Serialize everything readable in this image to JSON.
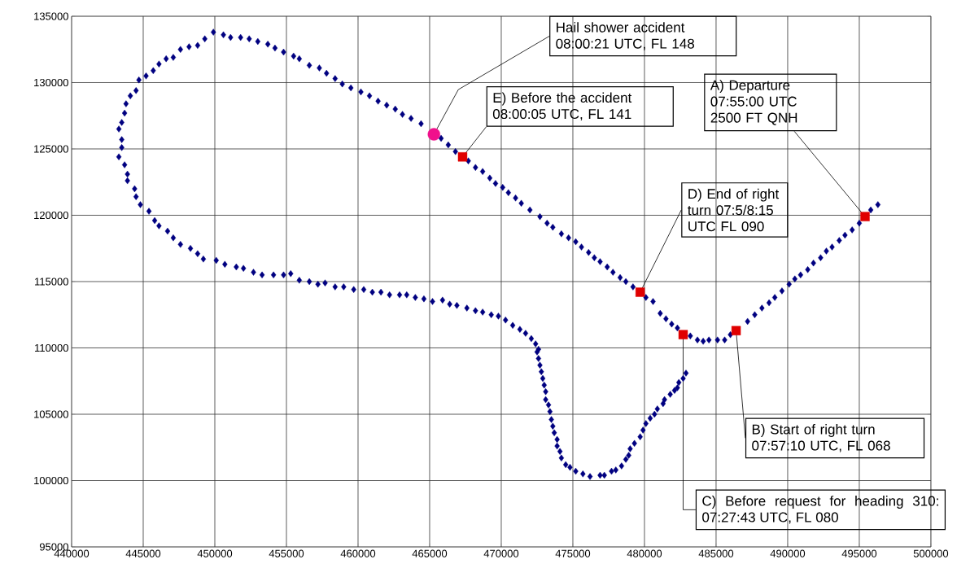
{
  "chart_data": {
    "type": "scatter",
    "xlim": [
      440000,
      500000
    ],
    "xticks": [
      440000,
      445000,
      450000,
      455000,
      460000,
      465000,
      470000,
      475000,
      480000,
      485000,
      490000,
      495000,
      500000
    ],
    "ylim": [
      95000,
      135000
    ],
    "yticks": [
      95000,
      100000,
      105000,
      110000,
      115000,
      120000,
      125000,
      130000,
      135000
    ],
    "grid": true,
    "series": [
      {
        "color": "#000080",
        "marker": "diamond",
        "x": [
          496300,
          495800,
          495000,
          494500,
          494000,
          493600,
          493100,
          492700,
          492300,
          491800,
          491400,
          490900,
          490500,
          490100,
          489600,
          489100,
          488700,
          488200,
          487700,
          487200,
          486000,
          485600,
          485100,
          484500,
          484100,
          483700,
          483200,
          482300,
          481900,
          481500,
          481100,
          480600,
          480100,
          479200,
          478700,
          478300,
          477800,
          477400,
          476900,
          476500,
          476100,
          475600,
          475200,
          474700,
          474200,
          473600,
          473200,
          472700,
          472000,
          471400,
          471000,
          470500,
          470100,
          469600,
          469200,
          468700,
          468200,
          467700,
          466800,
          466300,
          465800,
          464400,
          463700,
          463100,
          462600,
          462000,
          461400,
          460800,
          460200,
          459500,
          458900,
          458400,
          457800,
          457300,
          456600,
          455900,
          455500,
          454800,
          454200,
          453700,
          453000,
          452400,
          451800,
          451100,
          450600,
          449900,
          449300,
          448800,
          448200,
          447600,
          447100,
          446600,
          446100,
          445700,
          445200,
          444700,
          444500,
          444100,
          443800,
          443700,
          443500,
          443300,
          443500,
          443500,
          443300,
          443700,
          443900,
          443900,
          444400,
          444500,
          444800,
          445400,
          445800,
          446100,
          446700,
          447100,
          447600,
          448300,
          448800,
          449200,
          450100,
          450700,
          451500,
          452000,
          452700,
          453300,
          454100,
          454800,
          455300,
          455900,
          456600,
          457200,
          457700,
          458400,
          459000,
          459700,
          460400,
          461000,
          461600,
          462200,
          462900,
          463400,
          464000,
          464600,
          465200,
          465900,
          466400,
          466900,
          467600,
          468200,
          468700,
          469300,
          469800,
          470300,
          470800,
          471300,
          471700,
          472100,
          472400,
          472600,
          472500,
          472600,
          472700,
          472800,
          472900,
          473000,
          473100,
          473100,
          473300,
          473400,
          473500,
          473600,
          473700,
          473900,
          473900,
          474100,
          474200,
          474500,
          474800,
          475200,
          475700,
          476200,
          476900,
          477200,
          477700,
          478000,
          478400,
          478700,
          478900,
          479000,
          479300,
          479700,
          479900,
          480100,
          480400,
          480700,
          480900,
          481300,
          481400,
          481800,
          482100,
          482300,
          482400,
          482700,
          482900
        ],
        "values": [
          120800,
          120400,
          119400,
          118900,
          118500,
          118100,
          117600,
          117300,
          116800,
          116400,
          115900,
          115500,
          115200,
          114800,
          114300,
          113800,
          113400,
          113000,
          112500,
          112000,
          111000,
          110600,
          110600,
          110600,
          110500,
          110600,
          110900,
          111500,
          111800,
          112200,
          112600,
          113500,
          113800,
          114600,
          115000,
          115300,
          115700,
          116100,
          116500,
          116800,
          117200,
          117600,
          118000,
          118300,
          118600,
          119100,
          119400,
          119900,
          120400,
          120900,
          121300,
          121700,
          122100,
          122400,
          122800,
          123300,
          123600,
          124100,
          124800,
          125300,
          125800,
          126900,
          127300,
          127600,
          128000,
          128300,
          128600,
          129000,
          129300,
          129600,
          129900,
          130300,
          130700,
          131100,
          131300,
          131800,
          132000,
          132300,
          132600,
          132900,
          133100,
          133300,
          133400,
          133400,
          133600,
          133800,
          133300,
          132800,
          132700,
          132500,
          131900,
          131800,
          131400,
          130900,
          130500,
          130200,
          129400,
          129000,
          128400,
          127700,
          127000,
          126500,
          125700,
          125100,
          124400,
          123800,
          123100,
          122600,
          122000,
          121400,
          120800,
          120300,
          119600,
          119200,
          118800,
          118300,
          117800,
          117500,
          117100,
          116700,
          116600,
          116300,
          116100,
          116000,
          115700,
          115500,
          115500,
          115500,
          115600,
          115100,
          115000,
          114800,
          114900,
          114600,
          114600,
          114400,
          114400,
          114200,
          114200,
          114000,
          114000,
          114000,
          113800,
          113700,
          113500,
          113600,
          113300,
          113200,
          113000,
          112800,
          112700,
          112500,
          112400,
          112100,
          111700,
          111400,
          111100,
          110700,
          110300,
          109900,
          109700,
          109200,
          108700,
          108200,
          107700,
          107200,
          106700,
          106100,
          105700,
          105200,
          104600,
          104100,
          103600,
          103100,
          102600,
          102200,
          101700,
          101200,
          101000,
          100700,
          100500,
          100300,
          100400,
          100400,
          100700,
          100800,
          101100,
          101600,
          101900,
          102400,
          102800,
          103300,
          103800,
          104300,
          104700,
          105000,
          105400,
          105800,
          106100,
          106500,
          106800,
          107000,
          107400,
          107700,
          108100
        ]
      },
      {
        "color": "#e00000",
        "marker": "square",
        "x": [
          495400,
          486400,
          482700,
          479700,
          467300
        ],
        "values": [
          119900,
          111300,
          111000,
          114200,
          124400
        ]
      },
      {
        "color": "#f0108c",
        "marker": "circle",
        "x": [
          465300
        ],
        "values": [
          126100
        ]
      }
    ],
    "annotations": [
      {
        "text": "Hail shower accident 08:00:21 UTC, FL 148",
        "x": 465300,
        "y": 126100
      },
      {
        "text": "E) Before the accident 08:00:05 UTC, FL 141",
        "x": 467300,
        "y": 124400
      },
      {
        "text": "A) Departure 07:55:00 UTC 2500 FT QNH",
        "x": 495400,
        "y": 119900
      },
      {
        "text": "D) End of right turn 07:5/8:15 UTC FL 090",
        "x": 479700,
        "y": 114200
      },
      {
        "text": "B) Start of right turn 07:57:10 UTC, FL 068",
        "x": 486400,
        "y": 111300
      },
      {
        "text": "C) Before request for heading 310: 07:27:43 UTC, FL 080",
        "x": 482700,
        "y": 111000
      }
    ]
  }
}
